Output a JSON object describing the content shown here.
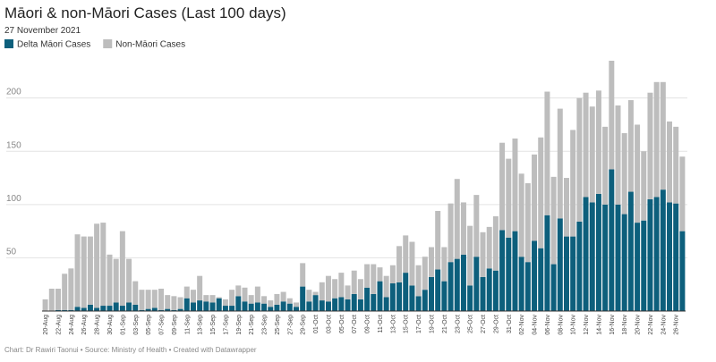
{
  "chart_data": {
    "type": "stacked_bar",
    "title": "Māori & non-Māori Cases (Last 100 days)",
    "subtitle": "27 November 2021",
    "footer": "Chart: Dr Rawiri Taonui • Source: Ministry of Health • Created with Datawrapper",
    "categories": [
      "20-Aug",
      null,
      "22-Aug",
      null,
      "24-Aug",
      null,
      "26-Aug",
      null,
      "28-Aug",
      null,
      "30-Aug",
      null,
      "01-Sep",
      null,
      "03-Sep",
      null,
      "05-Sep",
      null,
      "07-Sep",
      null,
      "09-Sep",
      null,
      "11-Sep",
      null,
      "13-Sep",
      null,
      "15-Sep",
      null,
      "17-Sep",
      null,
      "19-Sep",
      null,
      "21-Sep",
      null,
      "23-Sep",
      null,
      "25-Sep",
      null,
      "27-Sep",
      null,
      "29-Sep",
      null,
      "01-Oct",
      null,
      "03-Oct",
      null,
      "05-Oct",
      null,
      "07-Oct",
      null,
      "09-Oct",
      null,
      "11-Oct",
      null,
      "13-Oct",
      null,
      "15-Oct",
      null,
      "17-Oct",
      null,
      "19-Oct",
      null,
      "21-Oct",
      null,
      "23-Oct",
      null,
      "25-Oct",
      null,
      "27-Oct",
      null,
      "29-Oct",
      null,
      "31-Oct",
      null,
      "02-Nov",
      null,
      "04-Nov",
      null,
      "06-Nov",
      null,
      "08-Nov",
      null,
      "10-Nov",
      null,
      "12-Nov",
      null,
      "14-Nov",
      null,
      "16-Nov",
      null,
      "18-Nov",
      null,
      "20-Nov",
      null,
      "22-Nov",
      null,
      "24-Nov",
      null,
      "26-Nov",
      null
    ],
    "series": [
      {
        "name": "Delta Māori Cases",
        "color": "#0d5f7c",
        "values": [
          0,
          0,
          1,
          1,
          1,
          4,
          3,
          6,
          3,
          5,
          5,
          8,
          5,
          8,
          6,
          1,
          2,
          3,
          1,
          2,
          1,
          2,
          12,
          8,
          10,
          9,
          8,
          12,
          5,
          5,
          14,
          9,
          7,
          8,
          7,
          4,
          6,
          9,
          7,
          4,
          23,
          9,
          15,
          10,
          9,
          12,
          13,
          11,
          16,
          11,
          22,
          16,
          28,
          13,
          26,
          27,
          36,
          24,
          14,
          20,
          32,
          39,
          28,
          46,
          49,
          53,
          24,
          51,
          32,
          40,
          38,
          76,
          69,
          75,
          51,
          46,
          66,
          59,
          90,
          44,
          87,
          70,
          70,
          84,
          107,
          102,
          110,
          100,
          133,
          100,
          91,
          112,
          83,
          85,
          105,
          107,
          114,
          102,
          101,
          75
        ]
      },
      {
        "name": "Non-Māori Cases",
        "color": "#bdbdbd",
        "values": [
          11,
          21,
          20,
          34,
          39,
          68,
          67,
          64,
          79,
          78,
          48,
          41,
          70,
          41,
          22,
          19,
          18,
          17,
          20,
          13,
          13,
          11,
          11,
          12,
          23,
          6,
          7,
          1,
          6,
          15,
          10,
          13,
          8,
          15,
          7,
          6,
          10,
          9,
          5,
          4,
          22,
          11,
          3,
          17,
          24,
          18,
          23,
          13,
          22,
          19,
          22,
          28,
          13,
          20,
          17,
          34,
          35,
          41,
          29,
          31,
          28,
          55,
          32,
          55,
          75,
          49,
          56,
          58,
          42,
          39,
          51,
          82,
          74,
          87,
          78,
          74,
          81,
          104,
          116,
          82,
          103,
          55,
          100,
          116,
          98,
          90,
          97,
          73,
          102,
          93,
          76,
          86,
          92,
          65,
          100,
          108,
          101,
          76,
          72,
          70
        ]
      }
    ],
    "ylim": [
      0,
      240
    ],
    "yticks": [
      50,
      100,
      150,
      200
    ],
    "grid": true
  }
}
